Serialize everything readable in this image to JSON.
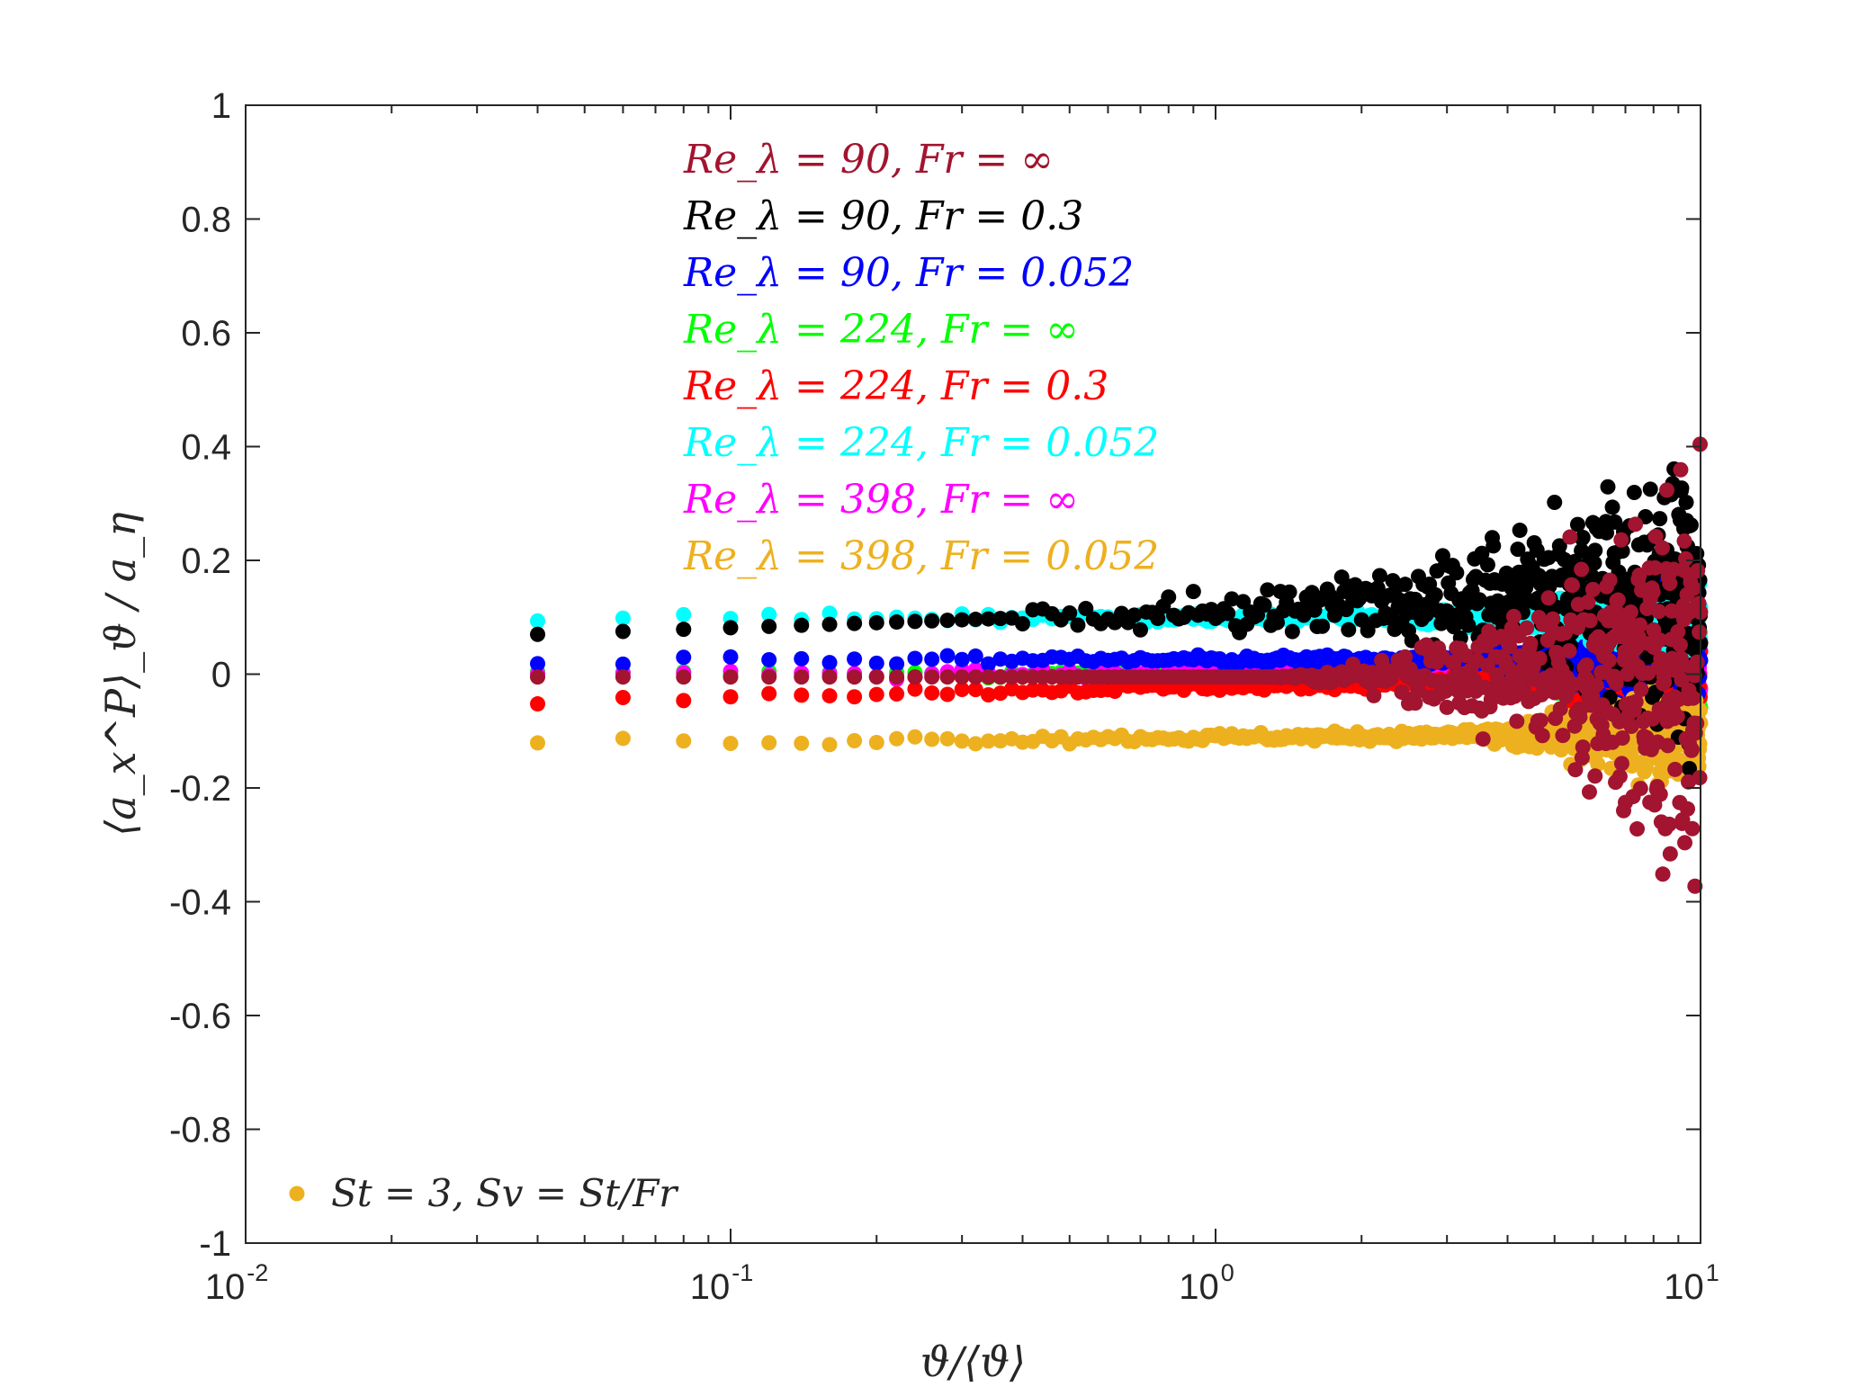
{
  "chart_data": {
    "type": "scatter",
    "xscale": "log",
    "xlim": [
      0.01,
      10
    ],
    "ylim": [
      -1,
      1
    ],
    "xlabel": "ϑ/⟨ϑ⟩",
    "ylabel": "⟨a_x^P⟩_ϑ / a_η",
    "xticks": [
      {
        "base": "10",
        "exp": "-2",
        "value": 0.01
      },
      {
        "base": "10",
        "exp": "-1",
        "value": 0.1
      },
      {
        "base": "10",
        "exp": "0",
        "value": 1
      },
      {
        "base": "10",
        "exp": "1",
        "value": 10
      }
    ],
    "yticks": [
      "1",
      "0.8",
      "0.6",
      "0.4",
      "0.2",
      "0",
      "-0.2",
      "-0.4",
      "-0.6",
      "-0.8",
      "-1"
    ],
    "grid": false,
    "annotation": "St = 3, Sv = St/Fr",
    "annotation_color": "#EDB120",
    "legend_location": "top-center",
    "series": [
      {
        "name": "Re_λ = 90, Fr = ∞",
        "color": "#A2142F",
        "base": 0.0,
        "noise_start": 1.3,
        "noise_amp": 0.22
      },
      {
        "name": "Re_λ = 90, Fr = 0.3",
        "color": "#000000",
        "base": 0.07,
        "trend": 0.1,
        "noise_start": 0.3,
        "noise_amp": 0.3
      },
      {
        "name": "Re_λ = 90, Fr = 0.052",
        "color": "#0000FF",
        "base": 0.025,
        "noise_start": 3,
        "noise_amp": 0.06
      },
      {
        "name": "Re_λ = 224, Fr = ∞",
        "color": "#00FF00",
        "base": 0.0,
        "noise_start": 3,
        "noise_amp": 0.05
      },
      {
        "name": "Re_λ = 224, Fr = 0.3",
        "color": "#FF0000",
        "base": -0.045,
        "trend": 0.04,
        "noise_start": 3,
        "noise_amp": 0.05
      },
      {
        "name": "Re_λ = 224, Fr = 0.052",
        "color": "#00FFFF",
        "base": 0.1,
        "noise_start": 2,
        "noise_amp": 0.04
      },
      {
        "name": "Re_λ = 398, Fr = ∞",
        "color": "#FF00FF",
        "base": 0.0,
        "noise_start": 3,
        "noise_amp": 0.04
      },
      {
        "name": "Re_λ = 398, Fr = 0.052",
        "color": "#EDB120",
        "base": -0.12,
        "trend": 0.015,
        "noise_start": 3,
        "noise_amp": 0.05
      }
    ],
    "sampled_points": {
      "x": [
        0.04,
        0.06,
        0.08,
        0.1,
        0.12,
        0.14,
        0.16,
        0.18,
        0.2
      ],
      "Re_λ = 90, Fr = 0.3": [
        0.073,
        0.073,
        0.07,
        0.073,
        0.09,
        0.09,
        0.08,
        0.09,
        0.09
      ],
      "Re_λ = 224, Fr = 0.052": [
        0.1,
        0.1,
        0.1,
        0.1,
        0.1,
        0.1,
        0.1,
        0.1,
        0.1
      ],
      "Re_λ = 90, Fr = 0.052": [
        0.025,
        0.025,
        0.025,
        0.025,
        0.025,
        0.025,
        0.025,
        0.025,
        0.025
      ],
      "Re_λ = 90, Fr = ∞": [
        -0.018,
        0.01,
        -0.01,
        -0.005,
        -0.005,
        -0.005,
        -0.005,
        -0.005,
        -0.005
      ],
      "Re_λ = 224, Fr = 0.3": [
        -0.05,
        -0.045,
        -0.04,
        -0.037,
        -0.035,
        -0.032,
        -0.03,
        -0.03,
        -0.03
      ],
      "Re_λ = 398, Fr = 0.052": [
        -0.12,
        -0.118,
        -0.117,
        -0.115,
        -0.115,
        -0.113,
        -0.113,
        -0.112,
        -0.112
      ]
    }
  }
}
